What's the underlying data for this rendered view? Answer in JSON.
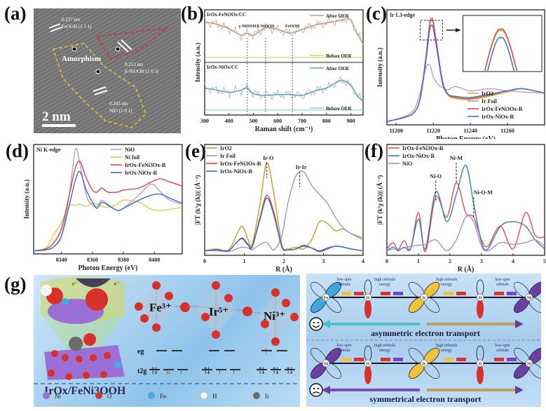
{
  "panels": {
    "a": {
      "label": "(a)",
      "annotations": [
        "0.237 nm",
        "FeOOH (2 1 1)",
        "Amorphism",
        "0.213 nm",
        "β-NiOOH (1 0 5)",
        "0.243 nm",
        "NiO (1 0 1)"
      ],
      "scale_bar": "2 nm"
    },
    "b": {
      "label": "(b)"
    },
    "c": {
      "label": "(c)",
      "inset_arrow": "zoom-arrow"
    },
    "d": {
      "label": "(d)"
    },
    "e": {
      "label": "(e)"
    },
    "f": {
      "label": "(f)"
    },
    "g": {
      "label": "(g)",
      "material": "IrOx/FeNi3OOH",
      "electron_labels": [
        "e⁻",
        "e⁻"
      ],
      "ions": [
        "Fe³⁺",
        "Ir⁵⁺",
        "Ni³⁺"
      ],
      "orbitals": {
        "eg": "eg",
        "t2g": "t2g"
      },
      "legend": [
        {
          "name": "Ni",
          "color": "#9b6fd6"
        },
        {
          "name": "O",
          "color": "#d9302c"
        },
        {
          "name": "Fe",
          "color": "#3fb0e0"
        },
        {
          "name": "H",
          "color": "#ffffff"
        },
        {
          "name": "Ir",
          "color": "#6b6b6b"
        }
      ],
      "transport": {
        "top": {
          "centers": [
            "Fe",
            "O",
            "Ir",
            "O",
            "Ni"
          ],
          "labels": [
            "low-spin orbitals",
            "high orbitals energy",
            "high orbitals energy",
            "low-spin orbitals"
          ],
          "caption": "asymmetric electron transport",
          "mood": "happy"
        },
        "bottom": {
          "centers": [
            "Ni",
            "O",
            "Ir",
            "O",
            "Ni"
          ],
          "labels": [
            "low-spin orbitals",
            "high orbitals energy",
            "high orbitals energy",
            "low-spin orbitals"
          ],
          "caption": "symmetrical electron transport",
          "mood": "sad"
        }
      }
    }
  },
  "chart_data": [
    {
      "id": "b",
      "type": "line",
      "title": "",
      "xlabel": "Raman shift (cm⁻¹)",
      "ylabel": "Intensity (a.u.)",
      "xlim": [
        300,
        950
      ],
      "xticks": [
        300,
        400,
        500,
        600,
        700,
        800,
        900
      ],
      "subplots": [
        {
          "name": "IrOx-FeNi3Ox/CC",
          "series": [
            {
              "name": "After OER",
              "color": "#c89a78",
              "x": [
                300,
                350,
                400,
                450,
                475,
                500,
                550,
                600,
                650,
                700,
                750,
                800,
                850,
                880,
                900,
                930,
                950
              ],
              "y": [
                0.85,
                0.8,
                0.7,
                0.55,
                0.6,
                0.55,
                0.72,
                0.68,
                0.6,
                0.68,
                0.78,
                0.83,
                0.88,
                0.92,
                0.88,
                0.55,
                0.35
              ]
            },
            {
              "name": "Before OER",
              "color": "#d9d27a",
              "x": [
                300,
                950
              ],
              "y": [
                0.05,
                0.05
              ]
            }
          ],
          "markers": [
            {
              "x": 475,
              "label": "γ-NiOOH"
            },
            {
              "x": 550,
              "label": "β-NiOOH"
            },
            {
              "x": 660,
              "label": "FeOOH"
            }
          ]
        },
        {
          "name": "IrOx-NiOx/CC",
          "series": [
            {
              "name": "After OER",
              "color": "#5aa6c0",
              "x": [
                300,
                350,
                400,
                450,
                475,
                500,
                550,
                600,
                650,
                700,
                750,
                800,
                850,
                870,
                900,
                930,
                950
              ],
              "y": [
                0.55,
                0.5,
                0.45,
                0.5,
                0.55,
                0.42,
                0.38,
                0.4,
                0.4,
                0.38,
                0.48,
                0.55,
                0.7,
                0.72,
                0.6,
                0.35,
                0.25
              ]
            },
            {
              "name": "Before OER",
              "color": "#8fd6d6",
              "x": [
                300,
                950
              ],
              "y": [
                0.05,
                0.05
              ]
            }
          ]
        }
      ]
    },
    {
      "id": "c",
      "type": "line",
      "title": "Ir L3-edge",
      "xlabel": "Photon Energy (eV)",
      "ylabel": "Intensity (a.u.)",
      "xlim": [
        11195,
        11280
      ],
      "xticks": [
        11200,
        11220,
        11240,
        11260
      ],
      "legend": "bottom-right",
      "series": [
        {
          "name": "IrO2",
          "color": "#c8b830"
        },
        {
          "name": "Ir Foil",
          "color": "#b79ad8"
        },
        {
          "name": "IrOx-FeNi3Ox-R",
          "color": "#e0454a"
        },
        {
          "name": "IrOx-NiOx-R",
          "color": "#3e73c4"
        }
      ],
      "x": [
        11195,
        11205,
        11210,
        11213,
        11216,
        11218,
        11219,
        11220,
        11222,
        11225,
        11228,
        11232,
        11240,
        11250,
        11260,
        11268,
        11280
      ],
      "values": {
        "IrO2": [
          0.03,
          0.07,
          0.12,
          0.25,
          0.6,
          0.9,
          0.95,
          0.92,
          0.7,
          0.38,
          0.27,
          0.24,
          0.23,
          0.26,
          0.3,
          0.33,
          0.29
        ],
        "Ir Foil": [
          0.03,
          0.08,
          0.15,
          0.3,
          0.52,
          0.55,
          0.5,
          0.44,
          0.38,
          0.34,
          0.32,
          0.35,
          0.31,
          0.33,
          0.31,
          0.3,
          0.29
        ],
        "IrOx-FeNi3Ox-R": [
          0.03,
          0.07,
          0.12,
          0.25,
          0.62,
          0.92,
          0.97,
          0.94,
          0.72,
          0.4,
          0.28,
          0.25,
          0.24,
          0.27,
          0.31,
          0.33,
          0.29
        ],
        "IrOx-NiOx-R": [
          0.03,
          0.07,
          0.12,
          0.24,
          0.58,
          0.86,
          0.91,
          0.88,
          0.68,
          0.38,
          0.28,
          0.26,
          0.25,
          0.28,
          0.31,
          0.33,
          0.29
        ]
      },
      "inset": "zoom of white-line peak"
    },
    {
      "id": "d",
      "type": "line",
      "title": "Ni K-edge",
      "xlabel": "Photon Energy (eV)",
      "ylabel": "Intensity (a.u.)",
      "xlim": [
        8322,
        8418
      ],
      "xticks": [
        8340,
        8360,
        8380,
        8400
      ],
      "legend": "top-right",
      "series": [
        {
          "name": "NiO",
          "color": "#b59fd8"
        },
        {
          "name": "Ni foil",
          "color": "#d6cf4a"
        },
        {
          "name": "IrOx-FeNi3Ox-R",
          "color": "#d9434a"
        },
        {
          "name": "IrOx-NiOx-R",
          "color": "#3e6cc0"
        }
      ],
      "x": [
        8322,
        8330,
        8335,
        8340,
        8345,
        8349,
        8352,
        8356,
        8360,
        8363,
        8366,
        8370,
        8376,
        8380,
        8390,
        8398,
        8404,
        8410,
        8418
      ],
      "values": {
        "NiO": [
          0.0,
          0.01,
          0.04,
          0.15,
          0.55,
          1.0,
          0.85,
          0.55,
          0.45,
          0.44,
          0.5,
          0.46,
          0.4,
          0.42,
          0.55,
          0.66,
          0.58,
          0.5,
          0.46
        ],
        "Ni foil": [
          0.0,
          0.03,
          0.16,
          0.28,
          0.44,
          0.45,
          0.46,
          0.44,
          0.47,
          0.46,
          0.44,
          0.43,
          0.46,
          0.5,
          0.48,
          0.41,
          0.4,
          0.41,
          0.43
        ],
        "IrOx-FeNi3Ox-R": [
          0.0,
          0.02,
          0.08,
          0.22,
          0.55,
          0.82,
          0.88,
          0.72,
          0.6,
          0.58,
          0.62,
          0.58,
          0.58,
          0.6,
          0.62,
          0.68,
          0.71,
          0.68,
          0.64
        ],
        "IrOx-NiOx-R": [
          0.0,
          0.01,
          0.04,
          0.15,
          0.45,
          0.7,
          0.78,
          0.6,
          0.48,
          0.42,
          0.48,
          0.45,
          0.4,
          0.42,
          0.5,
          0.55,
          0.56,
          0.52,
          0.47
        ]
      }
    },
    {
      "id": "e",
      "type": "line",
      "title": "",
      "xlabel": "R (Å)",
      "ylabel": "|FT (k³χ (k))| (Å⁻³)",
      "xlim": [
        0,
        4
      ],
      "xticks": [
        0,
        1,
        2,
        3,
        4
      ],
      "legend": "top-left",
      "annotations": [
        {
          "x": 1.57,
          "label": "Ir-O"
        },
        {
          "x": 2.4,
          "label": "Ir-Ir"
        }
      ],
      "series": [
        {
          "name": "IrO2",
          "color": "#b5a62a"
        },
        {
          "name": "Ir Foil",
          "color": "#a88fcf"
        },
        {
          "name": "IrOx-FeNi3Ox-R",
          "color": "#d9434a"
        },
        {
          "name": "IrOx-NiOx-R",
          "color": "#3e6cc0"
        }
      ],
      "x": [
        0,
        0.3,
        0.6,
        0.8,
        0.95,
        1.1,
        1.2,
        1.4,
        1.57,
        1.75,
        1.95,
        2.1,
        2.3,
        2.5,
        2.7,
        2.9,
        3.1,
        3.3,
        3.5,
        3.7,
        4.0
      ],
      "values": {
        "IrO2": [
          0.03,
          0.05,
          0.04,
          0.2,
          0.3,
          0.15,
          0.1,
          0.55,
          1.0,
          0.65,
          0.1,
          0.05,
          0.07,
          0.05,
          0.15,
          0.35,
          0.33,
          0.25,
          0.27,
          0.22,
          0.17
        ],
        "Ir Foil": [
          0.03,
          0.03,
          0.02,
          0.05,
          0.07,
          0.06,
          0.04,
          0.1,
          0.12,
          0.04,
          0.2,
          0.55,
          0.85,
          0.9,
          0.75,
          0.65,
          0.55,
          0.4,
          0.28,
          0.22,
          0.15
        ],
        "IrOx-FeNi3Ox-R": [
          0.03,
          0.04,
          0.03,
          0.12,
          0.17,
          0.1,
          0.08,
          0.4,
          0.64,
          0.45,
          0.08,
          0.04,
          0.05,
          0.09,
          0.06,
          0.02,
          0.05,
          0.08,
          0.07,
          0.05,
          0.03
        ],
        "IrOx-NiOx-R": [
          0.03,
          0.04,
          0.03,
          0.12,
          0.16,
          0.09,
          0.07,
          0.38,
          0.61,
          0.42,
          0.07,
          0.04,
          0.05,
          0.08,
          0.06,
          0.03,
          0.06,
          0.08,
          0.07,
          0.05,
          0.03
        ]
      }
    },
    {
      "id": "f",
      "type": "line",
      "title": "",
      "xlabel": "R (Å)",
      "ylabel": "|FT (k²χ (k))| (Å⁻²)",
      "xlim": [
        0,
        5
      ],
      "xticks": [
        0,
        1,
        2,
        3,
        4,
        5
      ],
      "legend": "top-left",
      "annotations": [
        {
          "x": 1.55,
          "label": "Ni-O"
        },
        {
          "x": 2.2,
          "label": "Ni-M"
        },
        {
          "x": 2.75,
          "label": "Ni-O-M"
        }
      ],
      "series": [
        {
          "name": "IrOx-FeNi3Ox-R",
          "color": "#d9505a"
        },
        {
          "name": "IrOx-NiOx-R",
          "color": "#3e7ea8"
        },
        {
          "name": "NiO",
          "color": "#b48ac8"
        }
      ],
      "x": [
        0,
        0.2,
        0.35,
        0.55,
        0.75,
        1.0,
        1.22,
        1.55,
        1.9,
        2.2,
        2.5,
        2.75,
        3.0,
        3.2,
        3.6,
        4.0,
        4.4,
        4.7,
        5.0
      ],
      "values": {
        "IrOx-FeNi3Ox-R": [
          0.05,
          0.12,
          0.04,
          0.14,
          0.05,
          0.45,
          0.02,
          0.62,
          0.4,
          0.78,
          0.45,
          0.4,
          0.15,
          0.08,
          0.3,
          0.05,
          0.45,
          0.2,
          0.18
        ],
        "IrOx-NiOx-R": [
          0.03,
          0.07,
          0.03,
          0.07,
          0.05,
          0.38,
          0.05,
          0.68,
          0.35,
          0.65,
          0.97,
          0.55,
          0.12,
          0.05,
          0.3,
          0.35,
          0.3,
          0.15,
          0.05
        ],
        "NiO": [
          0.03,
          0.05,
          0.05,
          0.06,
          0.08,
          0.09,
          0.1,
          0.15,
          0.03,
          0.15,
          0.4,
          0.35,
          0.08,
          0.03,
          0.12,
          0.1,
          0.12,
          0.15,
          0.08
        ]
      }
    }
  ]
}
